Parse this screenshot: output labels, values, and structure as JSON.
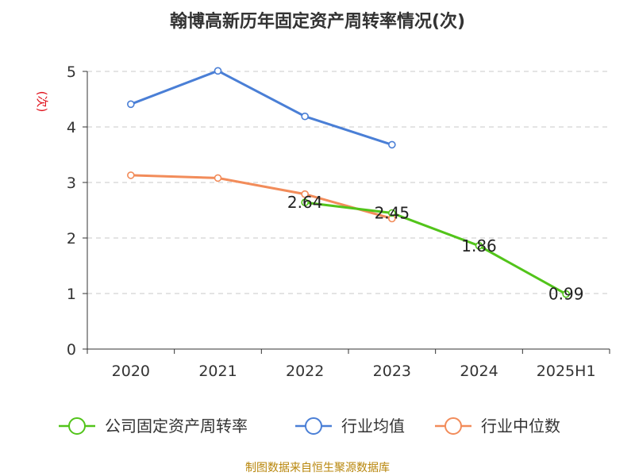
{
  "chart_data": {
    "type": "line",
    "title": "翰博高新历年固定资产周转率情况(次)",
    "ylabel": "(次)",
    "categories": [
      "2020",
      "2021",
      "2022",
      "2023",
      "2024",
      "2025H1"
    ],
    "ylim": [
      0,
      5
    ],
    "yticks": [
      0,
      1,
      2,
      3,
      4,
      5
    ],
    "grid": true,
    "legend_position": "bottom",
    "series": [
      {
        "name": "公司固定资产周转率",
        "color": "#52c41a",
        "values": [
          null,
          null,
          2.64,
          2.45,
          1.86,
          0.99
        ],
        "labels": [
          null,
          null,
          "2.64",
          "2.45",
          "1.86",
          "0.99"
        ]
      },
      {
        "name": "行业均值",
        "color": "#4a7fd6",
        "values": [
          4.41,
          5.01,
          4.19,
          3.68,
          null,
          null
        ]
      },
      {
        "name": "行业中位数",
        "color": "#f28c5a",
        "values": [
          3.13,
          3.08,
          2.79,
          2.35,
          null,
          null
        ]
      }
    ]
  },
  "source_note": "制图数据来自恒生聚源数据库"
}
